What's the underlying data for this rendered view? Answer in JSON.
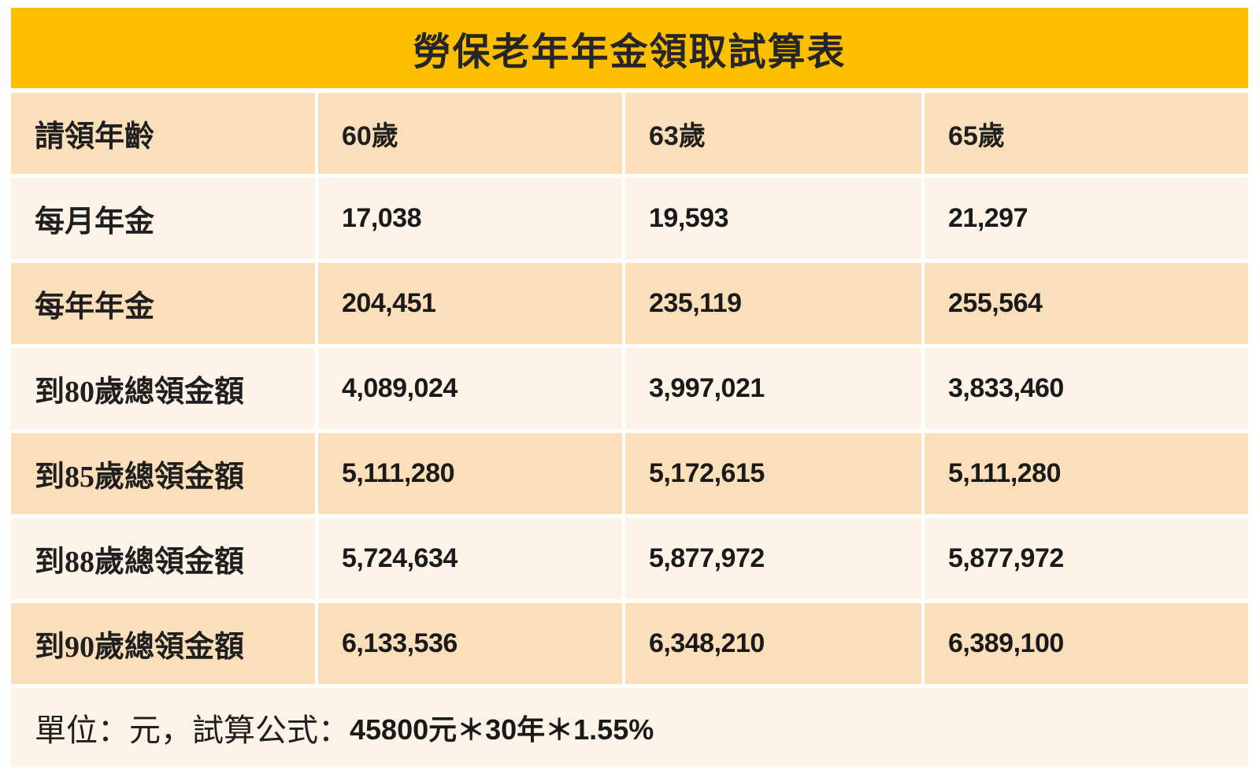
{
  "title": "勞保老年年金領取試算表",
  "table": {
    "header": {
      "label": "請領年齡",
      "columns": [
        "60歲",
        "63歲",
        "65歲"
      ]
    },
    "rows": [
      {
        "label": "每月年金",
        "values": [
          "17,038",
          "19,593",
          "21,297"
        ]
      },
      {
        "label": "每年年金",
        "values": [
          "204,451",
          "235,119",
          "255,564"
        ]
      },
      {
        "label": "到80歲總領金額",
        "values": [
          "4,089,024",
          "3,997,021",
          "3,833,460"
        ]
      },
      {
        "label": "到85歲總領金額",
        "values": [
          "5,111,280",
          "5,172,615",
          "5,111,280"
        ]
      },
      {
        "label": "到88歲總領金額",
        "values": [
          "5,724,634",
          "5,877,972",
          "5,877,972"
        ]
      },
      {
        "label": "到90歲總領金額",
        "values": [
          "6,133,536",
          "6,348,210",
          "6,389,100"
        ]
      }
    ],
    "footer": {
      "prefix": "單位：元，試算公式：",
      "formula": "45800元＊30年＊1.55%"
    }
  },
  "colors": {
    "title_bg": "#fcbf00",
    "row_dark": "#fbdfbb",
    "row_light": "#fdf3e7",
    "text": "#1a1a1a"
  },
  "chart_data": {
    "type": "table",
    "title": "勞保老年年金領取試算表",
    "columns": [
      "請領年齡",
      "60歲",
      "63歲",
      "65歲"
    ],
    "rows": [
      [
        "每月年金",
        17038,
        19593,
        21297
      ],
      [
        "每年年金",
        204451,
        235119,
        255564
      ],
      [
        "到80歲總領金額",
        4089024,
        3997021,
        3833460
      ],
      [
        "到85歲總領金額",
        5111280,
        5172615,
        5111280
      ],
      [
        "到88歲總領金額",
        5724634,
        5877972,
        5877972
      ],
      [
        "到90歲總領金額",
        6133536,
        6348210,
        6389100
      ]
    ],
    "note": "單位：元，試算公式：45800元＊30年＊1.55%",
    "unit": "元",
    "formula": "45800元＊30年＊1.55%"
  }
}
